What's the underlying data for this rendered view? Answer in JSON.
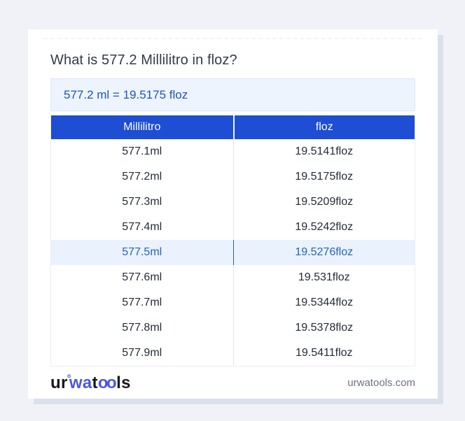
{
  "page": {
    "title": "What is 577.2 Millilitro in floz?",
    "result": "577.2 ml = 19.5175 floz"
  },
  "table": {
    "headers": {
      "from": "Millilitro",
      "to": "floz"
    },
    "rows": [
      {
        "ml": "577.1ml",
        "floz": "19.5141floz"
      },
      {
        "ml": "577.2ml",
        "floz": "19.5175floz"
      },
      {
        "ml": "577.3ml",
        "floz": "19.5209floz"
      },
      {
        "ml": "577.4ml",
        "floz": "19.5242floz"
      },
      {
        "ml": "577.5ml",
        "floz": "19.5276floz"
      },
      {
        "ml": "577.6ml",
        "floz": "19.531floz"
      },
      {
        "ml": "577.7ml",
        "floz": "19.5344floz"
      },
      {
        "ml": "577.8ml",
        "floz": "19.5378floz"
      },
      {
        "ml": "577.9ml",
        "floz": "19.5411floz"
      }
    ],
    "highlighted_row_index": 4
  },
  "footer": {
    "logo": {
      "part1": "ur",
      "ring": "°",
      "part2": "wa",
      "part3": "t",
      "part4": "oo",
      "part5": "ls"
    },
    "domain": "urwatools.com"
  },
  "colors": {
    "page_background": "#f0f2f7",
    "card_background": "#ffffff",
    "card_shadow": "#dbe0ec",
    "header_blue": "#1d4ed3",
    "result_box_background": "#edf4fd",
    "result_text_blue": "#1c54c0",
    "highlight_row_background": "#e9f2fd",
    "highlight_text_blue": "#2b63b6",
    "logo_blue": "#4d57e4",
    "body_text": "#242b37"
  }
}
